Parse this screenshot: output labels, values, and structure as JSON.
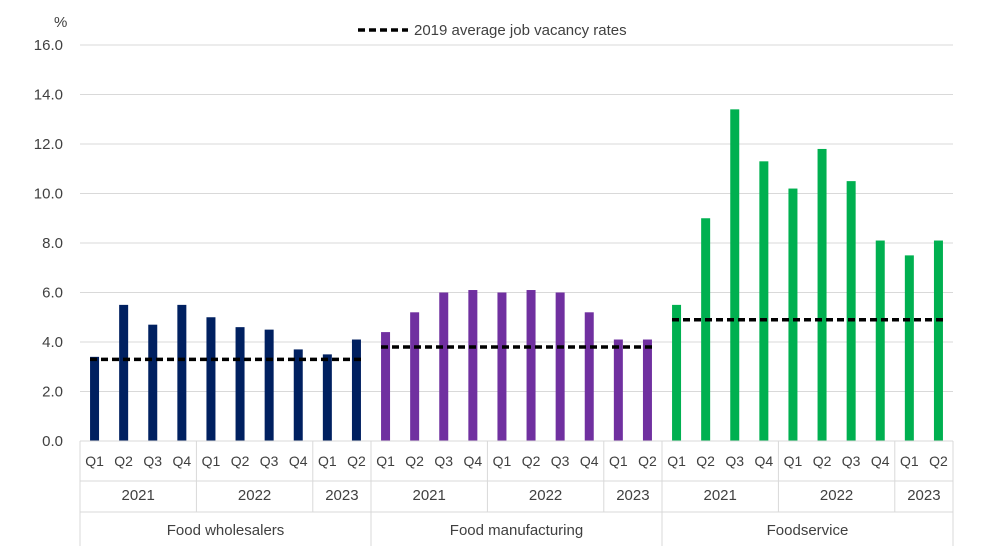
{
  "chart_data": {
    "type": "bar",
    "ylabel": "%",
    "ylim": [
      0,
      16
    ],
    "yticks": [
      "0.0",
      "2.0",
      "4.0",
      "6.0",
      "8.0",
      "10.0",
      "12.0",
      "14.0",
      "16.0"
    ],
    "grid": true,
    "legend": {
      "position": "top",
      "label": "2019 average job vacancy rates"
    },
    "groups": [
      {
        "name": "Food wholesalers",
        "color": "#002060",
        "average_2019": 3.3,
        "years": [
          {
            "label": "2021",
            "quarters": [
              "Q1",
              "Q2",
              "Q3",
              "Q4"
            ]
          },
          {
            "label": "2022",
            "quarters": [
              "Q1",
              "Q2",
              "Q3",
              "Q4"
            ]
          },
          {
            "label": "2023",
            "quarters": [
              "Q1",
              "Q2"
            ]
          }
        ],
        "values": [
          3.4,
          5.5,
          4.7,
          5.5,
          5.0,
          4.6,
          4.5,
          3.7,
          3.5,
          4.1
        ]
      },
      {
        "name": "Food manufacturing",
        "color": "#7030A0",
        "average_2019": 3.8,
        "years": [
          {
            "label": "2021",
            "quarters": [
              "Q1",
              "Q2",
              "Q3",
              "Q4"
            ]
          },
          {
            "label": "2022",
            "quarters": [
              "Q1",
              "Q2",
              "Q3",
              "Q4"
            ]
          },
          {
            "label": "2023",
            "quarters": [
              "Q1",
              "Q2"
            ]
          }
        ],
        "values": [
          4.4,
          5.2,
          6.0,
          6.1,
          6.0,
          6.1,
          6.0,
          5.2,
          4.1,
          4.1
        ]
      },
      {
        "name": "Foodservice",
        "color": "#00B050",
        "average_2019": 4.9,
        "years": [
          {
            "label": "2021",
            "quarters": [
              "Q1",
              "Q2",
              "Q3",
              "Q4"
            ]
          },
          {
            "label": "2022",
            "quarters": [
              "Q1",
              "Q2",
              "Q3",
              "Q4"
            ]
          },
          {
            "label": "2023",
            "quarters": [
              "Q1",
              "Q2"
            ]
          }
        ],
        "values": [
          5.5,
          9.0,
          13.4,
          11.3,
          10.2,
          11.8,
          10.5,
          8.1,
          7.5,
          8.1
        ]
      }
    ]
  }
}
